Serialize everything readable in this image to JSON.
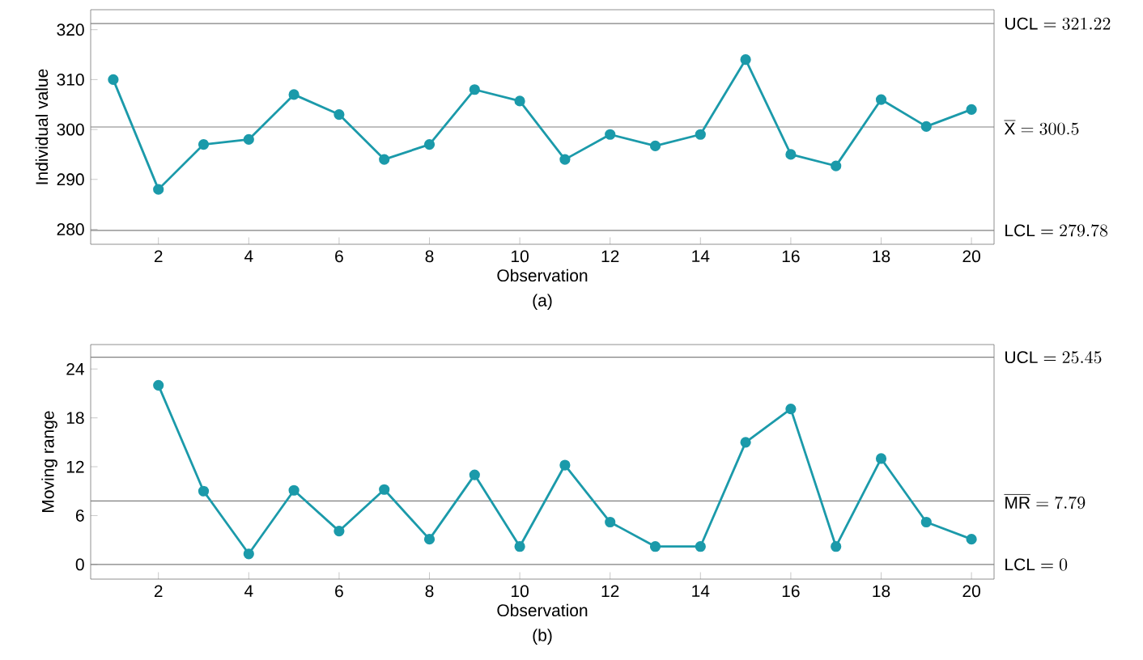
{
  "chart_data": [
    {
      "type": "line",
      "xlabel": "Observation",
      "ylabel": "Individual value",
      "annotations": [
        "(a)"
      ],
      "x": [
        1,
        2,
        3,
        4,
        5,
        6,
        7,
        8,
        9,
        10,
        11,
        12,
        13,
        14,
        15,
        16,
        17,
        18,
        19,
        20
      ],
      "values": [
        310,
        288,
        297,
        298,
        307,
        303,
        294,
        297,
        308,
        305.7,
        294,
        299,
        296.7,
        299,
        314,
        295,
        292.7,
        306,
        300.6,
        304
      ],
      "color": "#1b9aaa",
      "marker": "circle",
      "xlim": [
        0.5,
        20.5
      ],
      "ylim": [
        277,
        324
      ],
      "xticks": [
        2,
        4,
        6,
        8,
        10,
        12,
        14,
        16,
        18,
        20
      ],
      "yticks": [
        280,
        290,
        300,
        310,
        320
      ],
      "ref_lines": [
        {
          "axis": "y",
          "value": 321.22,
          "label": "\\mathrm{UCL} = 321.22",
          "color": "#808080"
        },
        {
          "axis": "y",
          "value": 300.5,
          "label": "\\overline{\\mathrm{X}} = 300.5",
          "color": "#808080"
        },
        {
          "axis": "y",
          "value": 279.78,
          "label": "\\mathrm{LCL} = 279.78",
          "color": "#808080"
        }
      ]
    },
    {
      "type": "line",
      "xlabel": "Observation",
      "ylabel": "Moving range",
      "annotations": [
        "(b)"
      ],
      "x": [
        2,
        3,
        4,
        5,
        6,
        7,
        8,
        9,
        10,
        11,
        12,
        13,
        14,
        15,
        16,
        17,
        18,
        19,
        20
      ],
      "values": [
        22,
        9,
        1.3,
        9.1,
        4.1,
        9.2,
        3.1,
        11,
        2.2,
        12.2,
        5.2,
        2.2,
        2.2,
        15,
        19.1,
        2.2,
        13,
        5.2,
        3.1
      ],
      "color": "#1b9aaa",
      "marker": "circle",
      "xlim": [
        0.5,
        20.5
      ],
      "ylim": [
        -1.8,
        27
      ],
      "xticks": [
        2,
        4,
        6,
        8,
        10,
        12,
        14,
        16,
        18,
        20
      ],
      "yticks": [
        0,
        6,
        12,
        18,
        24
      ],
      "ref_lines": [
        {
          "axis": "y",
          "value": 25.45,
          "label": "\\mathrm{UCL} = 25.45",
          "color": "#808080"
        },
        {
          "axis": "y",
          "value": 7.79,
          "label": "\\overline{\\mathrm{MR}} = 7.79",
          "color": "#808080"
        },
        {
          "axis": "y",
          "value": 0,
          "label": "\\mathrm{LCL} = 0",
          "color": "#808080"
        }
      ]
    }
  ]
}
